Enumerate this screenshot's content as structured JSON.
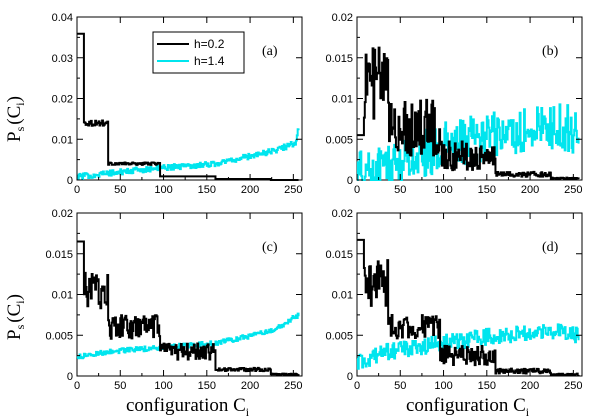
{
  "chart_data": [
    {
      "type": "line",
      "panel_label": "(a)",
      "ylabel": "P",
      "ylabel_sub": "s",
      "ylabel_arg": "(C",
      "ylabel_arg_sub": "i",
      "ylabel_close": ")",
      "xlabel": "",
      "xlim": [
        0,
        260
      ],
      "ylim": [
        0,
        0.04
      ],
      "xticks": [
        "0",
        "50",
        "100",
        "150",
        "200",
        "250"
      ],
      "yticks": [
        "0",
        "0.01",
        "0.02",
        "0.03",
        "0.04"
      ],
      "legend": {
        "placement": "top-center",
        "entries": [
          {
            "name": "h=0.2",
            "color": "#000000"
          },
          {
            "name": "h=1.4",
            "color": "#00e5ee"
          }
        ]
      },
      "series": [
        {
          "name": "h=0.2",
          "color": "#000000",
          "segments": [
            [
              0,
              8,
              0.0359,
              0.0
            ],
            [
              8,
              36,
              0.014,
              0.0007
            ],
            [
              36,
              96,
              0.004,
              0.0003
            ],
            [
              96,
              160,
              0.0009,
              0.0
            ],
            [
              160,
              224,
              0.00025,
              0.0
            ],
            [
              224,
              256,
              0.0,
              0.0
            ]
          ]
        },
        {
          "name": "h=1.4",
          "color": "#00e5ee",
          "trend": [
            [
              0,
              0.0008
            ],
            [
              96,
              0.003
            ],
            [
              160,
              0.004
            ],
            [
              224,
              0.007
            ],
            [
              252,
              0.009
            ],
            [
              256,
              0.013
            ]
          ],
          "noise": 0.0007
        }
      ]
    },
    {
      "type": "line",
      "panel_label": "(b)",
      "xlabel": "",
      "xlim": [
        0,
        260
      ],
      "ylim": [
        0,
        0.02
      ],
      "xticks": [
        "0",
        "50",
        "100",
        "150",
        "200",
        "250"
      ],
      "yticks": [
        "0",
        "0.005",
        "0.01",
        "0.015",
        "0.02"
      ],
      "series": [
        {
          "name": "h=0.2",
          "color": "#000000",
          "segments": [
            [
              0,
              8,
              0.0055,
              0.0
            ],
            [
              8,
              36,
              0.012,
              0.0045
            ],
            [
              36,
              96,
              0.0065,
              0.0035
            ],
            [
              96,
              160,
              0.003,
              0.0018
            ],
            [
              160,
              224,
              0.0007,
              0.0003
            ],
            [
              224,
              256,
              0.0002,
              0.0001
            ]
          ]
        },
        {
          "name": "h=1.4",
          "color": "#00e5ee",
          "trend": [
            [
              0,
              0.0005
            ],
            [
              36,
              0.0018
            ],
            [
              96,
              0.004
            ],
            [
              160,
              0.0055
            ],
            [
              224,
              0.0065
            ],
            [
              256,
              0.006
            ]
          ],
          "noise": 0.003
        }
      ]
    },
    {
      "type": "line",
      "panel_label": "(c)",
      "ylabel": "P",
      "ylabel_sub": "s",
      "ylabel_arg": "(C",
      "ylabel_arg_sub": "i",
      "ylabel_close": ")",
      "xlabel": "configuration C",
      "xlabel_sub": "i",
      "xlim": [
        0,
        260
      ],
      "ylim": [
        0,
        0.02
      ],
      "xticks": [
        "0",
        "50",
        "100",
        "150",
        "200",
        "250"
      ],
      "yticks": [
        "0",
        "0.005",
        "0.01",
        "0.015",
        "0.02"
      ],
      "series": [
        {
          "name": "h=0.2",
          "color": "#000000",
          "segments": [
            [
              0,
              8,
              0.0165,
              0.0
            ],
            [
              8,
              36,
              0.0105,
              0.0025
            ],
            [
              36,
              96,
              0.006,
              0.0015
            ],
            [
              96,
              160,
              0.003,
              0.001
            ],
            [
              160,
              224,
              0.0008,
              0.0002
            ],
            [
              224,
              256,
              0.0002,
              0.0001
            ]
          ]
        },
        {
          "name": "h=1.4",
          "color": "#00e5ee",
          "trend": [
            [
              0,
              0.0023
            ],
            [
              36,
              0.003
            ],
            [
              96,
              0.0035
            ],
            [
              160,
              0.004
            ],
            [
              224,
              0.0055
            ],
            [
              256,
              0.0075
            ]
          ],
          "noise": 0.0003
        }
      ]
    },
    {
      "type": "line",
      "panel_label": "(d)",
      "xlabel": "configuration C",
      "xlabel_sub": "i",
      "xlim": [
        0,
        260
      ],
      "ylim": [
        0,
        0.02
      ],
      "xticks": [
        "0",
        "50",
        "100",
        "150",
        "200",
        "250"
      ],
      "yticks": [
        "0",
        "0.005",
        "0.01",
        "0.015",
        "0.02"
      ],
      "series": [
        {
          "name": "h=0.2",
          "color": "#000000",
          "segments": [
            [
              0,
              8,
              0.0167,
              0.0
            ],
            [
              8,
              36,
              0.0115,
              0.003
            ],
            [
              36,
              96,
              0.006,
              0.0015
            ],
            [
              96,
              160,
              0.0025,
              0.0012
            ],
            [
              160,
              224,
              0.0006,
              0.0003
            ],
            [
              224,
              256,
              0.0002,
              0.0001
            ]
          ]
        },
        {
          "name": "h=1.4",
          "color": "#00e5ee",
          "trend": [
            [
              0,
              0.0015
            ],
            [
              36,
              0.003
            ],
            [
              96,
              0.004
            ],
            [
              160,
              0.005
            ],
            [
              224,
              0.0055
            ],
            [
              256,
              0.005
            ]
          ],
          "noise": 0.001
        }
      ]
    }
  ]
}
